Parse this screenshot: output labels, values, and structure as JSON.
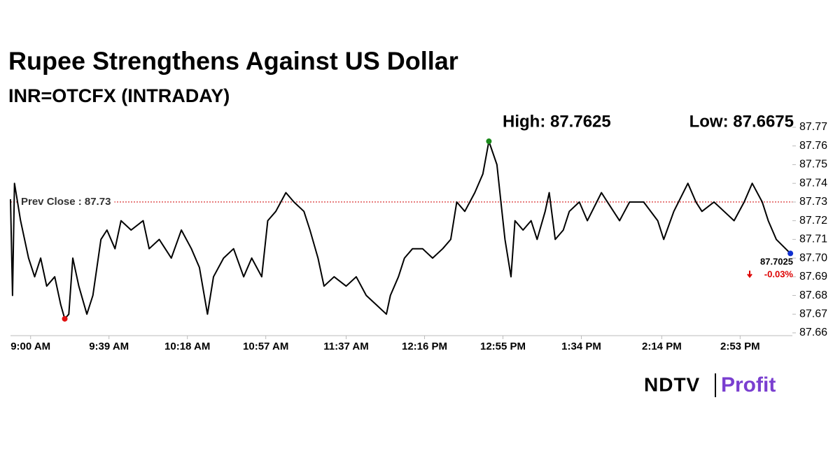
{
  "chart_data": {
    "type": "line",
    "title": "Rupee Strengthens Against US Dollar",
    "subtitle": "INR=OTCFX (INTRADAY)",
    "annotations": {
      "high": "High: 87.7625",
      "low": "Low: 87.6675",
      "prev_close_label": "Prev Close : 87.73",
      "last": "87.7025",
      "change": "-0.03%"
    },
    "prev_close": 87.73,
    "prev_close_color": "#d00000",
    "high_color": "#1a8a1a",
    "low_color": "#e01010",
    "last_color": "#1030d0",
    "x": [
      530,
      531,
      532,
      535,
      539,
      542,
      545,
      548,
      552,
      555,
      557,
      559,
      561,
      564,
      568,
      571,
      575,
      578,
      582,
      585,
      590,
      596,
      599,
      604,
      610,
      615,
      620,
      624,
      628,
      631,
      636,
      641,
      646,
      650,
      655,
      658,
      662,
      667,
      671,
      676,
      679,
      683,
      686,
      691,
      697,
      702,
      707,
      712,
      717,
      719,
      723,
      726,
      730,
      735,
      740,
      745,
      749,
      752,
      756,
      761,
      765,
      768,
      772,
      774,
      776,
      779,
      781,
      785,
      789,
      792,
      796,
      798,
      801,
      805,
      808,
      813,
      817,
      824,
      827,
      833,
      838,
      845,
      852,
      855,
      860,
      867,
      871,
      874,
      880,
      885,
      890,
      895,
      899,
      904,
      907,
      911,
      918
    ],
    "series": [
      {
        "name": "INR=OTCFX",
        "color": "#000000",
        "values": [
          87.7315,
          87.68,
          87.74,
          87.72,
          87.7,
          87.69,
          87.7,
          87.685,
          87.69,
          87.675,
          87.6675,
          87.67,
          87.7,
          87.685,
          87.67,
          87.68,
          87.71,
          87.715,
          87.705,
          87.72,
          87.715,
          87.72,
          87.705,
          87.71,
          87.7,
          87.715,
          87.705,
          87.695,
          87.67,
          87.69,
          87.7,
          87.705,
          87.69,
          87.7,
          87.69,
          87.72,
          87.725,
          87.735,
          87.73,
          87.725,
          87.715,
          87.7,
          87.685,
          87.69,
          87.685,
          87.69,
          87.68,
          87.675,
          87.67,
          87.68,
          87.69,
          87.7,
          87.705,
          87.705,
          87.7,
          87.705,
          87.71,
          87.73,
          87.725,
          87.735,
          87.745,
          87.7625,
          87.75,
          87.73,
          87.71,
          87.69,
          87.72,
          87.715,
          87.72,
          87.71,
          87.725,
          87.735,
          87.71,
          87.715,
          87.725,
          87.73,
          87.72,
          87.735,
          87.73,
          87.72,
          87.73,
          87.73,
          87.72,
          87.71,
          87.725,
          87.74,
          87.73,
          87.725,
          87.73,
          87.725,
          87.72,
          87.73,
          87.74,
          87.73,
          87.72,
          87.71,
          87.7025
        ]
      }
    ],
    "xlim": [
      530,
      919
    ],
    "xticks": [
      {
        "value": 540,
        "label": "9:00 AM"
      },
      {
        "value": 579,
        "label": "9:39 AM"
      },
      {
        "value": 618,
        "label": "10:18 AM"
      },
      {
        "value": 657,
        "label": "10:57 AM"
      },
      {
        "value": 697,
        "label": "11:37 AM"
      },
      {
        "value": 736,
        "label": "12:16 PM"
      },
      {
        "value": 775,
        "label": "12:55 PM"
      },
      {
        "value": 814,
        "label": "1:34 PM"
      },
      {
        "value": 854,
        "label": "2:14 PM"
      },
      {
        "value": 893,
        "label": "2:53 PM"
      }
    ],
    "ylim": [
      87.66,
      87.77
    ],
    "yticks": [
      87.77,
      87.76,
      87.75,
      87.74,
      87.73,
      87.72,
      87.71,
      {
        "value": 87.7,
        "label": "87.70"
      },
      87.69,
      87.68,
      87.67,
      87.66
    ],
    "grid": false,
    "brand": {
      "name": "NDTV",
      "product": "Profit"
    }
  }
}
